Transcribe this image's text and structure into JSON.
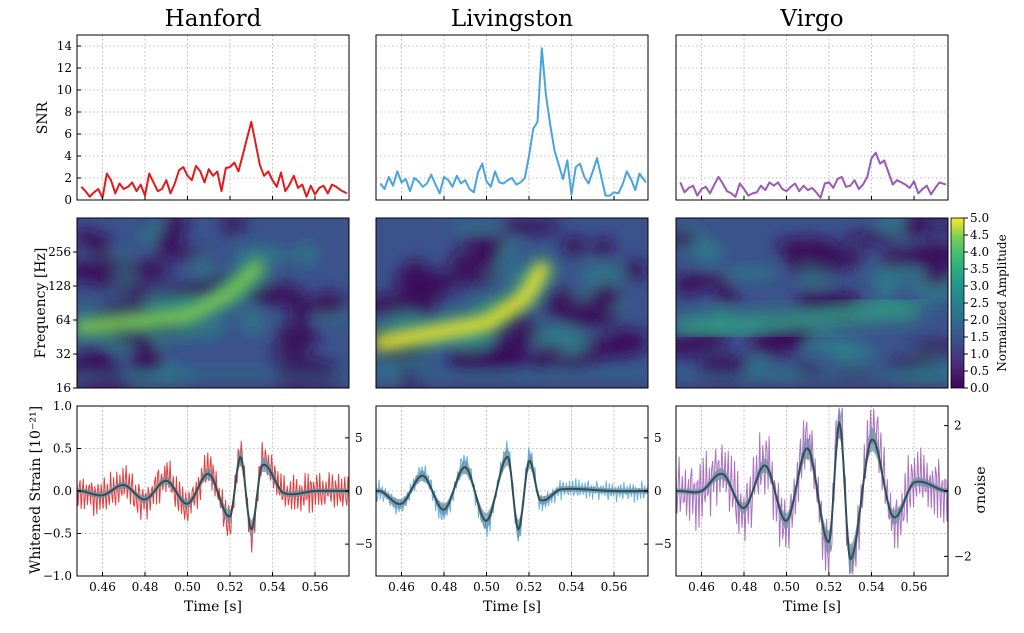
{
  "chart_data": {
    "type": "line",
    "columns": [
      "Hanford",
      "Livingston",
      "Virgo"
    ],
    "colors": {
      "Hanford": "#e31a1c",
      "Livingston": "#4aa3df",
      "Virgo": "#9b59b6",
      "model": "#2f4f56",
      "band": "#6f8fa3"
    },
    "panels": [
      {
        "row": "snr",
        "ylabel": "SNR",
        "ylim": [
          0,
          15
        ],
        "yticks": [
          "0",
          "2",
          "4",
          "6",
          "8",
          "10",
          "12",
          "14"
        ],
        "series": [
          {
            "detector": "Hanford",
            "x": [
              0.45,
              0.452,
              0.454,
              0.456,
              0.458,
              0.46,
              0.462,
              0.464,
              0.466,
              0.468,
              0.47,
              0.472,
              0.474,
              0.476,
              0.478,
              0.48,
              0.482,
              0.484,
              0.486,
              0.488,
              0.49,
              0.492,
              0.494,
              0.496,
              0.498,
              0.5,
              0.502,
              0.504,
              0.506,
              0.508,
              0.51,
              0.512,
              0.514,
              0.516,
              0.518,
              0.52,
              0.522,
              0.524,
              0.526,
              0.528,
              0.53,
              0.532,
              0.534,
              0.536,
              0.538,
              0.54,
              0.542,
              0.544,
              0.546,
              0.548,
              0.55,
              0.552,
              0.554,
              0.556,
              0.558,
              0.56,
              0.562,
              0.564,
              0.566,
              0.568,
              0.57,
              0.572,
              0.575
            ],
            "y": [
              1.2,
              0.8,
              0.3,
              0.7,
              1.0,
              0.2,
              2.4,
              1.8,
              0.6,
              1.5,
              1.0,
              1.2,
              1.6,
              0.8,
              1.4,
              0.4,
              2.4,
              1.6,
              0.8,
              1.0,
              1.8,
              0.6,
              1.5,
              2.7,
              3.0,
              2.2,
              1.8,
              3.1,
              2.6,
              1.6,
              2.8,
              2.2,
              2.6,
              0.8,
              2.9,
              3.0,
              3.4,
              2.6,
              4.1,
              5.6,
              7.1,
              5.2,
              3.2,
              2.2,
              2.6,
              1.8,
              1.2,
              2.5,
              0.8,
              1.4,
              2.2,
              1.1,
              1.4,
              0.3,
              1.3,
              0.5,
              1.1,
              1.3,
              0.6,
              1.4,
              1.2,
              0.9,
              0.6
            ]
          },
          {
            "detector": "Livingston",
            "x": [
              0.45,
              0.452,
              0.454,
              0.456,
              0.458,
              0.46,
              0.462,
              0.464,
              0.466,
              0.468,
              0.47,
              0.472,
              0.474,
              0.476,
              0.478,
              0.48,
              0.482,
              0.484,
              0.486,
              0.488,
              0.49,
              0.492,
              0.494,
              0.496,
              0.498,
              0.5,
              0.502,
              0.504,
              0.506,
              0.508,
              0.51,
              0.512,
              0.514,
              0.516,
              0.518,
              0.52,
              0.522,
              0.524,
              0.526,
              0.528,
              0.53,
              0.532,
              0.534,
              0.536,
              0.538,
              0.54,
              0.542,
              0.544,
              0.546,
              0.548,
              0.55,
              0.552,
              0.554,
              0.556,
              0.558,
              0.56,
              0.562,
              0.564,
              0.566,
              0.568,
              0.57,
              0.572,
              0.575
            ],
            "y": [
              1.5,
              1.0,
              2.1,
              1.3,
              2.6,
              1.6,
              1.9,
              0.8,
              2.0,
              1.7,
              1.2,
              1.5,
              2.3,
              1.4,
              0.6,
              2.1,
              1.8,
              1.2,
              2.2,
              1.5,
              1.8,
              1.0,
              0.7,
              2.5,
              3.3,
              1.7,
              1.2,
              2.6,
              1.6,
              1.5,
              1.8,
              2.0,
              1.4,
              1.6,
              2.0,
              4.0,
              6.5,
              7.1,
              13.8,
              9.5,
              6.8,
              4.5,
              3.2,
              1.9,
              3.6,
              0.5,
              3.0,
              3.3,
              2.1,
              1.5,
              2.6,
              3.8,
              2.1,
              0.4,
              0.4,
              0.7,
              0.6,
              1.4,
              2.6,
              1.9,
              0.9,
              2.4,
              1.6
            ]
          },
          {
            "detector": "Virgo",
            "x": [
              0.45,
              0.452,
              0.454,
              0.456,
              0.458,
              0.46,
              0.462,
              0.464,
              0.466,
              0.468,
              0.47,
              0.472,
              0.474,
              0.476,
              0.478,
              0.48,
              0.482,
              0.484,
              0.486,
              0.488,
              0.49,
              0.492,
              0.494,
              0.496,
              0.498,
              0.5,
              0.502,
              0.504,
              0.506,
              0.508,
              0.51,
              0.512,
              0.514,
              0.516,
              0.518,
              0.52,
              0.522,
              0.524,
              0.526,
              0.528,
              0.53,
              0.532,
              0.534,
              0.536,
              0.538,
              0.54,
              0.542,
              0.544,
              0.546,
              0.548,
              0.55,
              0.552,
              0.554,
              0.556,
              0.558,
              0.56,
              0.562,
              0.564,
              0.566,
              0.568,
              0.57,
              0.572,
              0.575
            ],
            "y": [
              1.6,
              0.7,
              1.1,
              1.3,
              0.4,
              1.0,
              1.2,
              0.6,
              1.4,
              2.1,
              1.5,
              0.8,
              0.6,
              0.3,
              1.5,
              1.0,
              0.4,
              0.6,
              0.7,
              1.3,
              0.9,
              1.6,
              1.3,
              1.6,
              1.0,
              0.8,
              1.2,
              1.5,
              0.8,
              1.3,
              0.9,
              1.1,
              0.7,
              0.2,
              1.5,
              1.6,
              1.1,
              1.9,
              2.1,
              1.2,
              1.3,
              1.8,
              1.0,
              1.4,
              2.1,
              3.8,
              4.3,
              3.3,
              3.6,
              2.5,
              1.4,
              1.8,
              1.6,
              1.4,
              1.1,
              1.7,
              0.6,
              1.0,
              1.3,
              0.5,
              1.1,
              1.6,
              1.4
            ]
          }
        ]
      },
      {
        "row": "spectrogram",
        "ylabel": "Frequency [Hz]",
        "yscale": "log2",
        "ylim": [
          16,
          512
        ],
        "yticks": [
          "16",
          "32",
          "64",
          "128",
          "256"
        ],
        "colorbar": {
          "label": "Normalized Amplitude",
          "range": [
            0.0,
            5.0
          ],
          "ticks": [
            "0.0",
            "0.5",
            "1.0",
            "1.5",
            "2.0",
            "2.5",
            "3.0",
            "3.5",
            "4.0",
            "4.5",
            "5.0"
          ],
          "colormap": "viridis"
        },
        "tracks": [
          {
            "detector": "Hanford",
            "x": [
              0.45,
              0.5,
              0.52,
              0.533
            ],
            "freq_hz": [
              55,
              70,
              110,
              190
            ],
            "peak_amplitude": 3.5
          },
          {
            "detector": "Livingston",
            "x": [
              0.45,
              0.5,
              0.518,
              0.526
            ],
            "freq_hz": [
              40,
              60,
              100,
              180
            ],
            "peak_amplitude": 5.0
          },
          {
            "detector": "Virgo",
            "x": [
              0.45,
              0.5,
              0.53,
              0.56
            ],
            "freq_hz": [
              55,
              60,
              75,
              80
            ],
            "peak_amplitude": 1.5
          }
        ]
      },
      {
        "row": "strain",
        "ylabel": "Whitened Strain  [10⁻²¹]",
        "ylim": [
          -1.0,
          1.0
        ],
        "yticks": [
          "−1.0",
          "−0.5",
          "0.0",
          "0.5",
          "1.0"
        ],
        "right_axis_label": "σnoise",
        "right_ticks": [
          {
            "detector": "Hanford",
            "ylim": [
              -8,
              8
            ],
            "ticks": [
              "−5",
              "0",
              "5"
            ]
          },
          {
            "detector": "Livingston",
            "ylim": [
              -8,
              8
            ],
            "ticks": [
              "−5",
              "0",
              "5"
            ]
          },
          {
            "detector": "Virgo",
            "ylim": [
              -2.6,
              2.6
            ],
            "ticks": [
              "−2",
              "0",
              "2"
            ]
          }
        ],
        "model_waveforms": [
          {
            "detector": "Hanford",
            "x": [
              0.45,
              0.46,
              0.47,
              0.48,
              0.49,
              0.5,
              0.51,
              0.52,
              0.525,
              0.53,
              0.535,
              0.545,
              0.56,
              0.575
            ],
            "y": [
              0.0,
              -0.05,
              0.07,
              -0.1,
              0.12,
              -0.15,
              0.2,
              -0.3,
              0.4,
              -0.45,
              0.3,
              -0.02,
              0.0,
              0.0
            ]
          },
          {
            "detector": "Livingston",
            "x": [
              0.45,
              0.46,
              0.47,
              0.48,
              0.49,
              0.5,
              0.51,
              0.515,
              0.52,
              0.525,
              0.535,
              0.56,
              0.575
            ],
            "y": [
              0.0,
              -0.15,
              0.18,
              -0.22,
              0.28,
              -0.35,
              0.4,
              -0.45,
              0.35,
              -0.1,
              0.02,
              0.0,
              0.0
            ]
          },
          {
            "detector": "Virgo",
            "x": [
              0.45,
              0.46,
              0.47,
              0.48,
              0.49,
              0.5,
              0.51,
              0.52,
              0.525,
              0.53,
              0.54,
              0.55,
              0.56,
              0.575
            ],
            "y": [
              0.0,
              0.0,
              0.2,
              -0.2,
              0.3,
              -0.35,
              0.5,
              -0.6,
              0.8,
              -0.8,
              0.6,
              -0.3,
              0.1,
              0.0
            ]
          }
        ]
      }
    ],
    "xlabel": "Time [s]",
    "xlim": [
      0.448,
      0.576
    ],
    "xticks": [
      "0.46",
      "0.48",
      "0.50",
      "0.52",
      "0.54",
      "0.56"
    ],
    "grid": true
  }
}
